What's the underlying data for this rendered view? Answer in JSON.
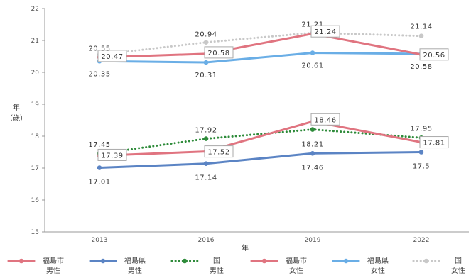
{
  "chart_data": {
    "type": "line",
    "title": "",
    "xlabel": "年",
    "ylabel_line1": "年",
    "ylabel_line2": "（歳）",
    "x": [
      "2013",
      "2016",
      "2019",
      "2022"
    ],
    "ylim": [
      15,
      22
    ],
    "yticks": [
      15,
      16,
      17,
      18,
      19,
      20,
      21,
      22
    ],
    "grid": false,
    "legend_position": "bottom",
    "series": [
      {
        "key": "city_m",
        "name_line1": "福島市",
        "name_line2": "男性",
        "color": "#e07480",
        "style": "solid",
        "values": [
          20.47,
          20.58,
          21.21,
          20.56
        ],
        "labels": [
          "20.47",
          "20.58",
          "21.21",
          "20.56"
        ]
      },
      {
        "key": "pref_m",
        "name_line1": "福島県",
        "name_line2": "男性",
        "color": "#5b84c4",
        "style": "solid",
        "values": [
          17.01,
          17.14,
          17.46,
          17.5
        ],
        "labels": [
          "17.01",
          "17.14",
          "17.46",
          "17.5"
        ]
      },
      {
        "key": "nat_m",
        "name_line1": "国",
        "name_line2": "男性",
        "color": "#2e8b3a",
        "style": "dotted",
        "values": [
          17.45,
          17.92,
          18.21,
          17.95
        ],
        "labels": [
          "17.45",
          "17.92",
          "18.21",
          "17.95"
        ]
      },
      {
        "key": "city_f",
        "name_line1": "福島市",
        "name_line2": "女性",
        "color": "#e07480",
        "style": "solid",
        "values": [
          17.39,
          17.52,
          18.46,
          17.81
        ],
        "labels": [
          "17.39",
          "17.52",
          "18.46",
          "17.81"
        ]
      },
      {
        "key": "pref_f",
        "name_line1": "福島県",
        "name_line2": "女性",
        "color": "#6aaee6",
        "style": "solid",
        "values": [
          20.35,
          20.31,
          20.61,
          20.58
        ],
        "labels": [
          "20.35",
          "20.31",
          "20.61",
          "20.58"
        ]
      },
      {
        "key": "nat_f",
        "name_line1": "国",
        "name_line2": "女性",
        "color": "#c8c8c8",
        "style": "dotted",
        "values": [
          20.55,
          20.94,
          21.24,
          21.14
        ],
        "labels": [
          "20.55",
          "20.94",
          "21.24",
          "21.14"
        ]
      }
    ]
  }
}
